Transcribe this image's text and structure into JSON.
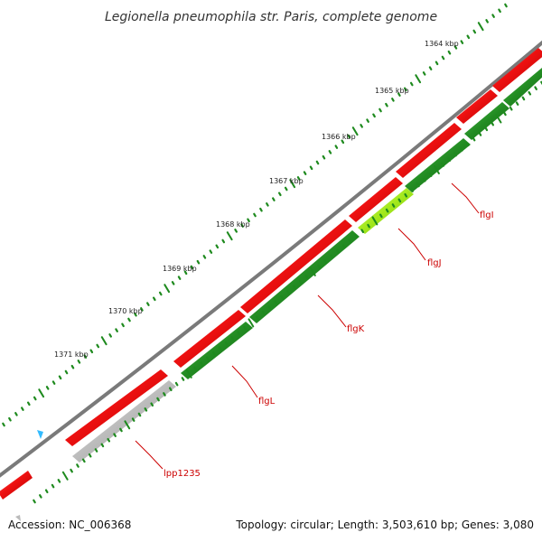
{
  "title": "Legionella pneumophila str. Paris, complete genome",
  "footer": {
    "accession": "Accession: NC_006368",
    "summary": "Topology: circular; Length: 3,503,610 bp; Genes: 3,080"
  },
  "ticks": [
    "1364 kbp",
    "1365 kbp",
    "1366 kbp",
    "1367 kbp",
    "1368 kbp",
    "1369 kbp",
    "1370 kbp",
    "1371 kbp"
  ],
  "genes": [
    {
      "name": "flgI",
      "strand": "reverse",
      "color": "#228b22"
    },
    {
      "name": "flgJ",
      "strand": "reverse",
      "color": "#a2e81c"
    },
    {
      "name": "flgK",
      "strand": "reverse",
      "color": "#228b22"
    },
    {
      "name": "flgL",
      "strand": "reverse",
      "color": "#228b22"
    },
    {
      "name": "lpp1235",
      "strand": "reverse",
      "color": "#bbbbbb"
    }
  ],
  "colors": {
    "backbone": "#808080",
    "forward_cds": "#ee1111",
    "reverse_cds": "#228b22",
    "highlight_cds": "#a2e81c",
    "pseudo": "#bbbbbb",
    "tick": "#1e8a1e",
    "label": "#cc0000",
    "marker": "#33bbff"
  }
}
